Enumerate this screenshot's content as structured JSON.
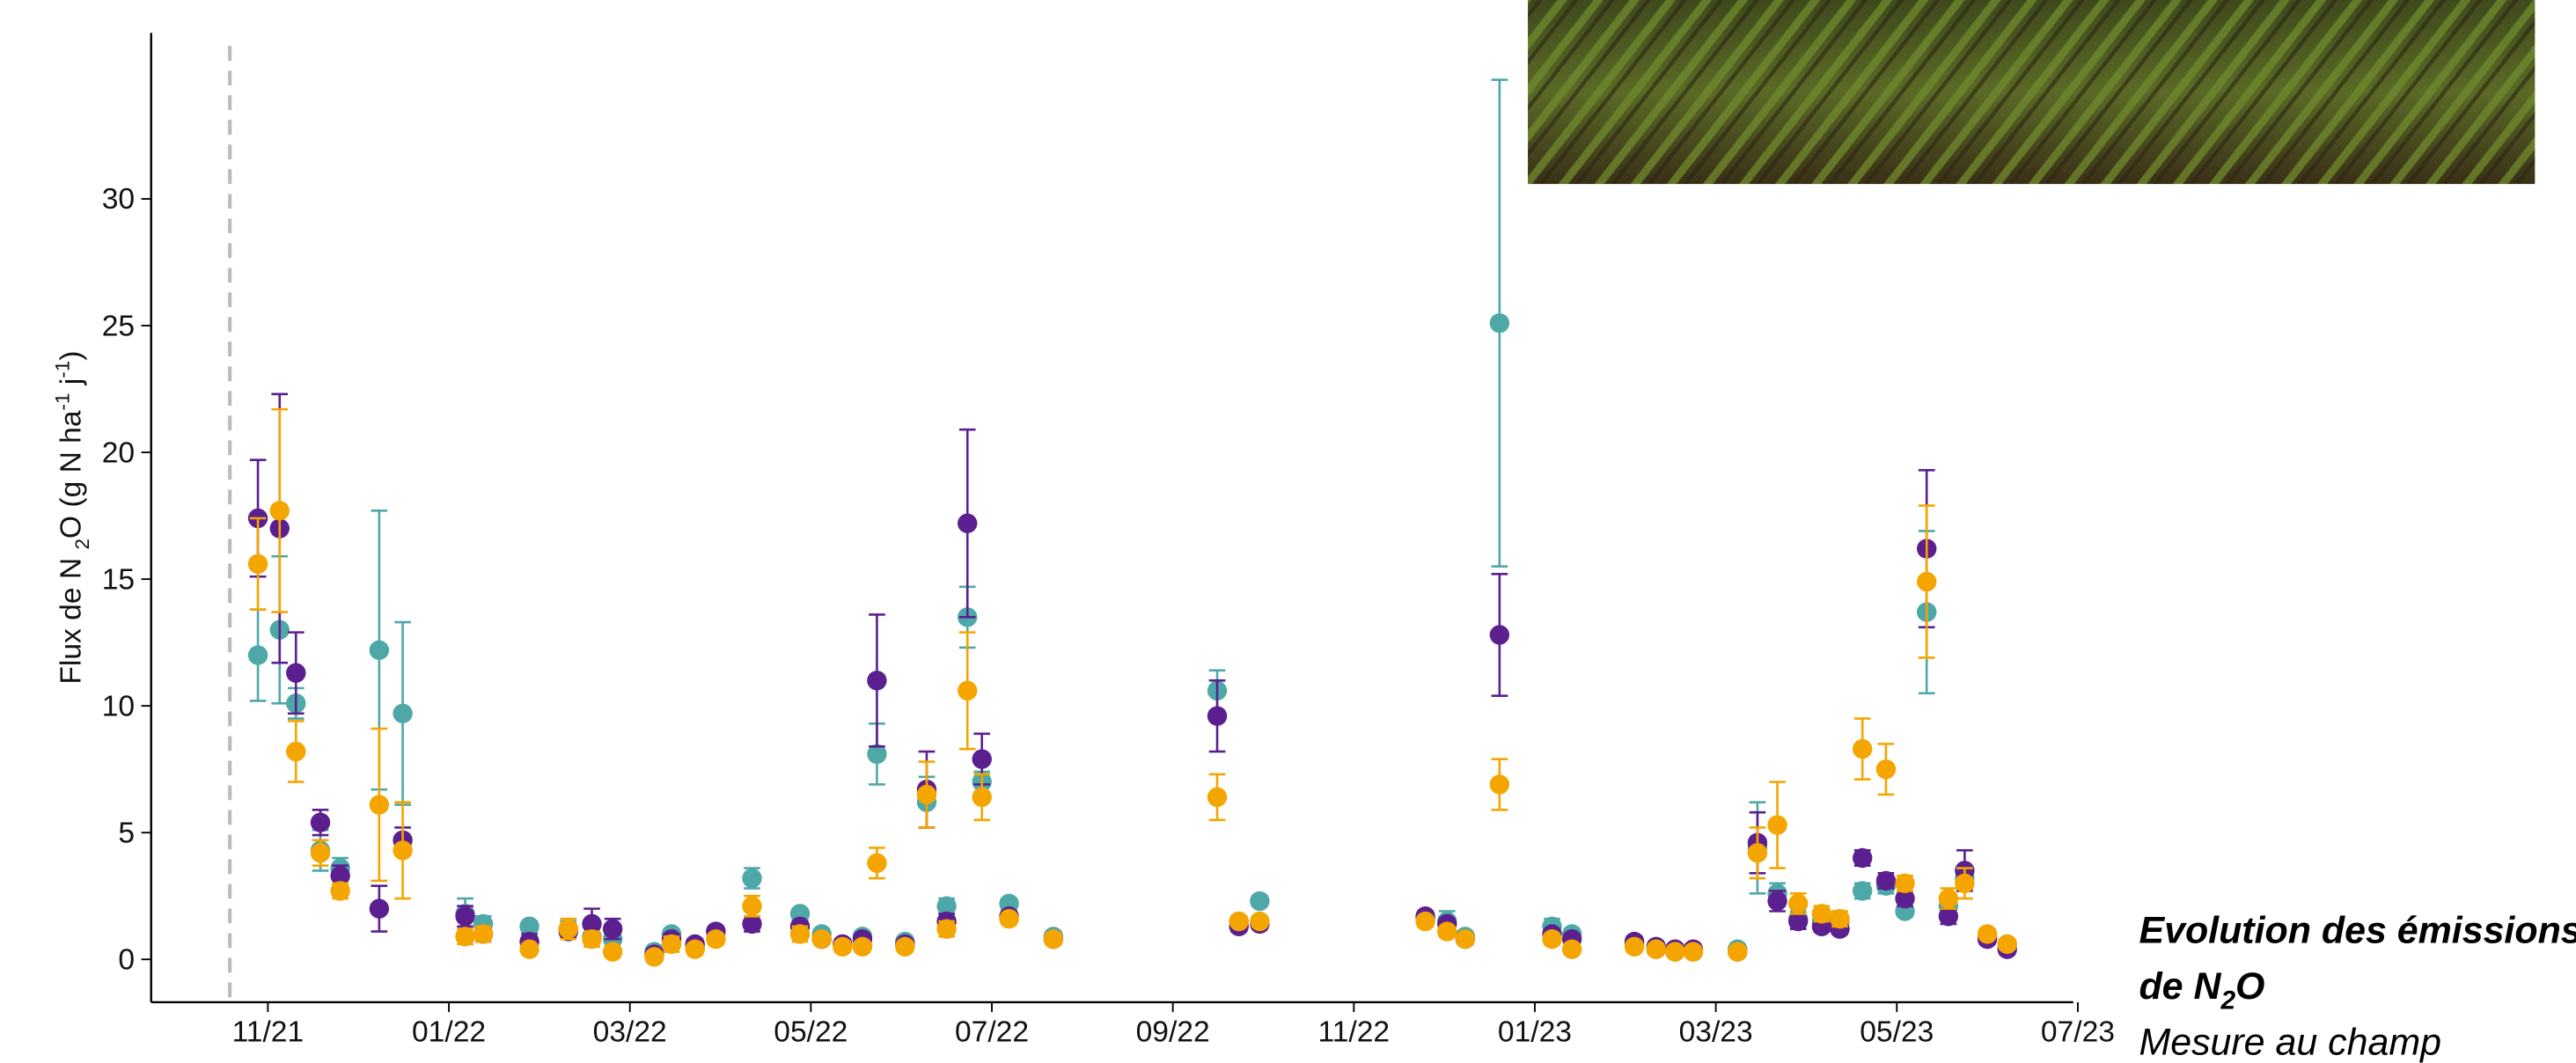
{
  "chart_data": {
    "type": "errorbar_scatter",
    "title_parts": [
      "Evolution des émissions",
      "de N",
      "2",
      "O"
    ],
    "subtitle": "Mesure au champ",
    "ylabel_parts": [
      "Flux de N ",
      "2",
      "O (g N ha",
      "-1",
      " j",
      "-1",
      ")"
    ],
    "x": [
      -0.11,
      0.13,
      0.31,
      0.58,
      0.8,
      1.23,
      1.49,
      2.18,
      2.38,
      2.89,
      3.32,
      3.58,
      3.81,
      4.27,
      4.46,
      4.72,
      4.95,
      5.35,
      5.88,
      6.12,
      6.35,
      6.57,
      6.73,
      7.04,
      7.28,
      7.5,
      7.73,
      7.89,
      8.19,
      8.68,
      10.49,
      10.73,
      10.96,
      12.79,
      13.03,
      13.23,
      13.61,
      14.19,
      14.41,
      15.1,
      15.34,
      15.55,
      15.75,
      16.24,
      16.46,
      16.68,
      16.91,
      17.17,
      17.37,
      17.62,
      17.88,
      18.09,
      18.33,
      18.57,
      18.75,
      19.0,
      19.22
    ],
    "series": [
      {
        "color": "#4fa8a8",
        "values": [
          12.0,
          13.0,
          10.1,
          4.3,
          3.6,
          12.2,
          9.7,
          1.8,
          1.4,
          1.3,
          1.2,
          0.9,
          0.8,
          0.3,
          1.0,
          0.5,
          1.1,
          3.2,
          1.8,
          1.0,
          0.6,
          0.9,
          8.1,
          0.7,
          6.2,
          2.1,
          13.5,
          7.0,
          2.2,
          0.9,
          10.6,
          1.5,
          2.3,
          1.6,
          1.5,
          0.9,
          25.1,
          1.3,
          1.0,
          0.6,
          0.4,
          0.3,
          0.3,
          0.4,
          4.4,
          2.6,
          1.6,
          1.5,
          1.5,
          2.7,
          2.9,
          1.9,
          13.7,
          2.1,
          3.2,
          0.9,
          0.6
        ],
        "errors": [
          1.8,
          2.9,
          0.6,
          0.8,
          0.4,
          5.5,
          3.6,
          0.6,
          0.3,
          0.2,
          0.3,
          0.4,
          0.3,
          0.2,
          0.2,
          0.2,
          0.2,
          0.4,
          0.2,
          0.2,
          0.2,
          0.2,
          1.2,
          0.2,
          1.0,
          0.3,
          1.2,
          0.4,
          0.2,
          0.2,
          0.8,
          0.2,
          0.2,
          0.3,
          0.4,
          0.2,
          9.6,
          0.3,
          0.2,
          0.2,
          0.2,
          0.2,
          0.2,
          0.2,
          1.8,
          0.4,
          0.3,
          0.2,
          0.2,
          0.3,
          0.3,
          0.2,
          3.2,
          0.3,
          0.4,
          0.2,
          0.2
        ]
      },
      {
        "color": "#5b1f8f",
        "values": [
          17.4,
          17.0,
          11.3,
          5.4,
          3.3,
          2.0,
          4.7,
          1.7,
          1.0,
          0.7,
          1.1,
          1.4,
          1.2,
          0.2,
          0.8,
          0.6,
          1.1,
          1.4,
          1.3,
          0.8,
          0.6,
          0.8,
          11.0,
          0.6,
          6.7,
          1.5,
          17.2,
          7.9,
          1.7,
          0.8,
          9.6,
          1.3,
          1.4,
          1.7,
          1.4,
          0.8,
          12.8,
          1.0,
          0.8,
          0.7,
          0.5,
          0.4,
          0.4,
          0.3,
          4.6,
          2.3,
          1.5,
          1.3,
          1.2,
          4.0,
          3.1,
          2.4,
          16.2,
          1.7,
          3.5,
          0.8,
          0.4
        ],
        "errors": [
          2.3,
          5.3,
          1.6,
          0.5,
          0.4,
          0.9,
          0.5,
          0.4,
          0.3,
          0.3,
          0.2,
          0.6,
          0.4,
          0.2,
          0.2,
          0.2,
          0.2,
          0.3,
          0.2,
          0.2,
          0.2,
          0.2,
          2.6,
          0.2,
          1.5,
          0.3,
          3.7,
          1.0,
          0.2,
          0.2,
          1.4,
          0.2,
          0.2,
          0.2,
          0.2,
          0.2,
          2.4,
          0.2,
          0.2,
          0.2,
          0.2,
          0.2,
          0.2,
          0.2,
          1.2,
          0.4,
          0.3,
          0.2,
          0.2,
          0.3,
          0.3,
          0.3,
          3.1,
          0.3,
          0.8,
          0.2,
          0.2
        ]
      },
      {
        "color": "#f5a500",
        "values": [
          15.6,
          17.7,
          8.2,
          4.2,
          2.7,
          6.1,
          4.3,
          0.9,
          1.0,
          0.4,
          1.2,
          0.8,
          0.3,
          0.1,
          0.6,
          0.4,
          0.8,
          2.1,
          1.0,
          0.8,
          0.5,
          0.5,
          3.8,
          0.5,
          6.5,
          1.2,
          10.6,
          6.4,
          1.6,
          0.8,
          6.4,
          1.5,
          1.5,
          1.5,
          1.1,
          0.8,
          6.9,
          0.8,
          0.4,
          0.5,
          0.4,
          0.3,
          0.3,
          0.3,
          4.2,
          5.3,
          2.2,
          1.8,
          1.6,
          8.3,
          7.5,
          3.0,
          14.9,
          2.4,
          3.0,
          1.0,
          0.6
        ],
        "errors": [
          1.8,
          4.0,
          1.2,
          0.5,
          0.3,
          3.0,
          1.9,
          0.3,
          0.3,
          0.2,
          0.4,
          0.3,
          0.2,
          0.2,
          0.3,
          0.2,
          0.2,
          0.4,
          0.3,
          0.2,
          0.2,
          0.2,
          0.6,
          0.2,
          1.3,
          0.3,
          2.3,
          0.9,
          0.2,
          0.2,
          0.9,
          0.2,
          0.2,
          0.2,
          0.2,
          0.2,
          1.0,
          0.2,
          0.2,
          0.2,
          0.2,
          0.2,
          0.2,
          0.2,
          1.0,
          1.7,
          0.4,
          0.3,
          0.3,
          1.2,
          1.0,
          0.3,
          3.0,
          0.4,
          0.6,
          0.2,
          0.2
        ]
      }
    ],
    "xlim": [
      -1.29,
      19.95
    ],
    "xticks": [
      {
        "value": 0,
        "label": "11/21"
      },
      {
        "value": 2,
        "label": "01/22"
      },
      {
        "value": 4,
        "label": "03/22"
      },
      {
        "value": 6,
        "label": "05/22"
      },
      {
        "value": 8,
        "label": "07/22"
      },
      {
        "value": 10,
        "label": "09/22"
      },
      {
        "value": 12,
        "label": "11/22"
      },
      {
        "value": 14,
        "label": "01/23"
      },
      {
        "value": 16,
        "label": "03/23"
      },
      {
        "value": 18,
        "label": "05/23"
      },
      {
        "value": 20,
        "label": "07/23"
      }
    ],
    "ylim": [
      -1.69,
      36.55
    ],
    "yticks": [
      0,
      5,
      10,
      15,
      20,
      25,
      30
    ],
    "vline": -0.42,
    "grid": false
  }
}
